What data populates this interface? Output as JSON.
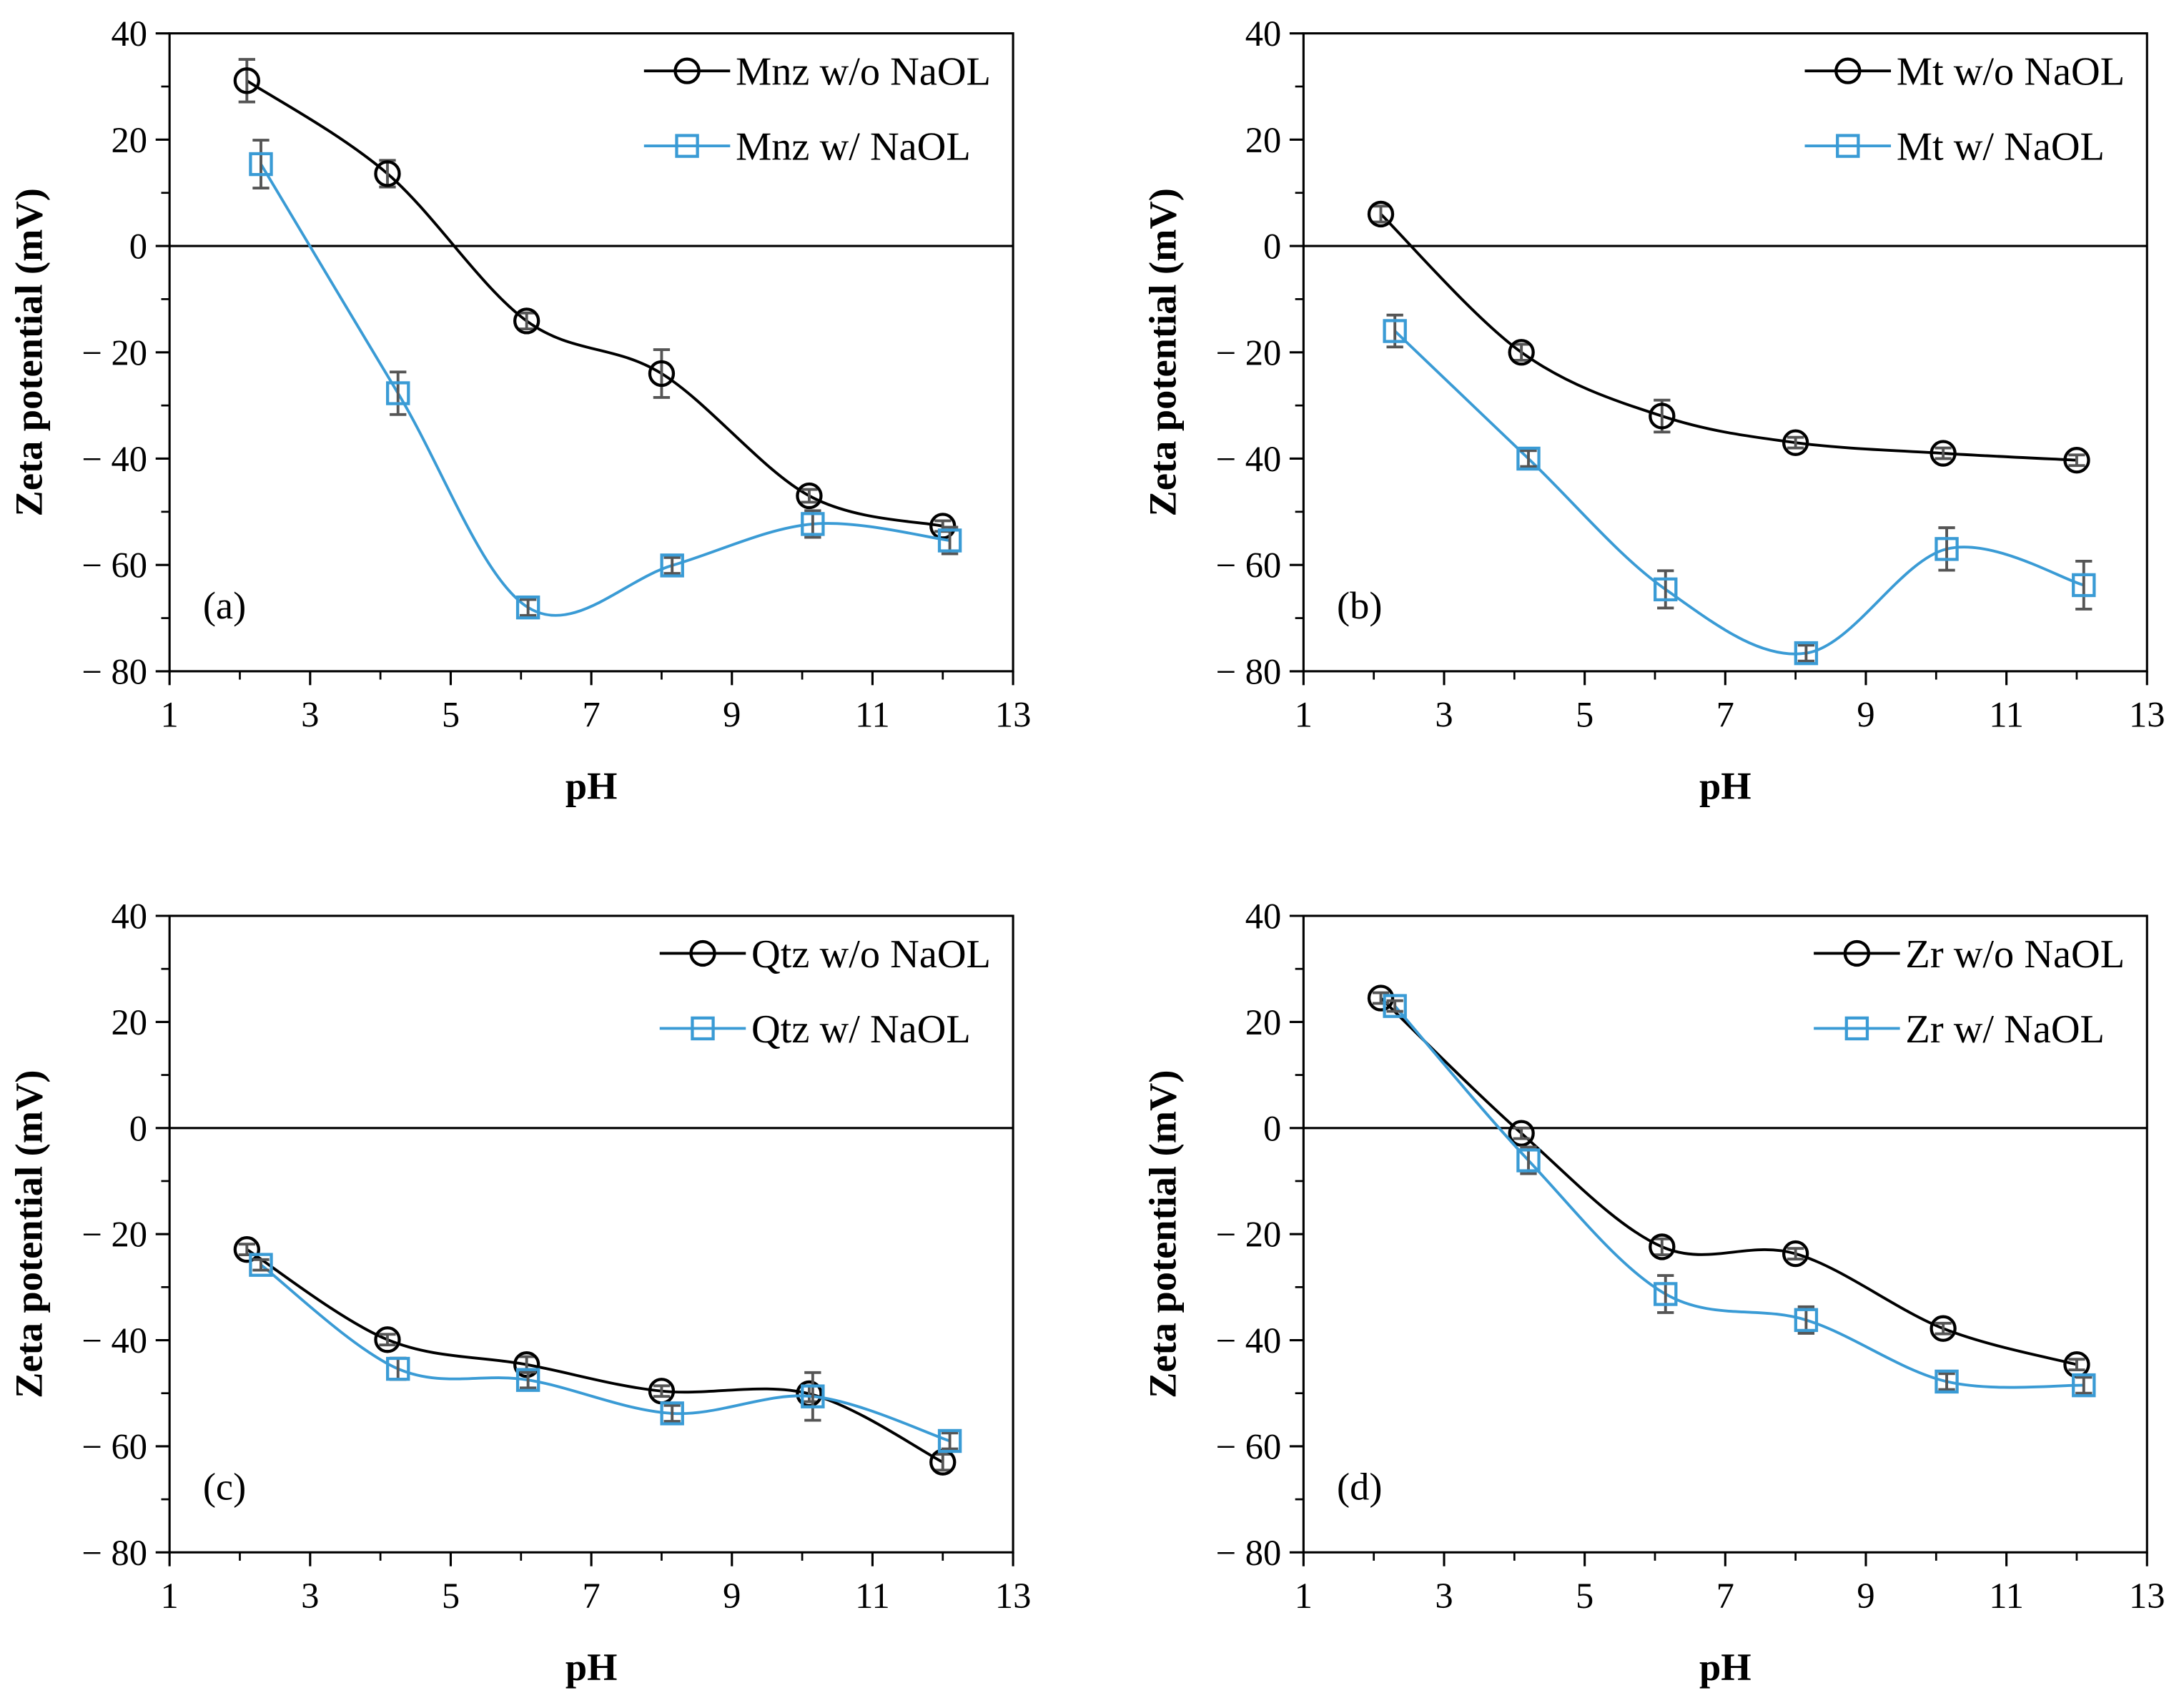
{
  "chart_data": [
    {
      "type": "line",
      "panel_label": "(a)",
      "xlabel": "pH",
      "ylabel": "Zeta potential (mV)",
      "xlim": [
        1,
        13
      ],
      "ylim": [
        -80,
        40
      ],
      "xticks": [
        1,
        3,
        5,
        7,
        9,
        11,
        13
      ],
      "yticks": [
        40,
        20,
        0,
        -20,
        -40,
        -60,
        -80
      ],
      "legend_position": "top-right",
      "series": [
        {
          "name": "Mnz w/o NaOL",
          "marker": "circle",
          "color": "#000000",
          "x": [
            2.1,
            4.1,
            6.08,
            8.0,
            10.1,
            12.0
          ],
          "y": [
            31.1,
            13.6,
            -14.1,
            -24.0,
            -47.0,
            -52.7
          ],
          "err": [
            4,
            2.5,
            1.5,
            4.5,
            1.2,
            1
          ]
        },
        {
          "name": "Mnz w/ NaOL",
          "marker": "square",
          "color": "#3a9bd5",
          "x": [
            2.3,
            4.25,
            6.1,
            8.15,
            10.15,
            12.1
          ],
          "y": [
            15.4,
            -27.7,
            -68.0,
            -60.1,
            -52.3,
            -55.4
          ],
          "err": [
            4.5,
            4,
            1.5,
            1.5,
            2.5,
            2.5
          ]
        }
      ]
    },
    {
      "type": "line",
      "panel_label": "(b)",
      "xlabel": "pH",
      "ylabel": "Zeta potential (mV)",
      "xlim": [
        1,
        13
      ],
      "ylim": [
        -80,
        40
      ],
      "xticks": [
        1,
        3,
        5,
        7,
        9,
        11,
        13
      ],
      "yticks": [
        40,
        20,
        0,
        -20,
        -40,
        -60,
        -80
      ],
      "legend_position": "top-right",
      "series": [
        {
          "name": "Mt w/o NaOL",
          "marker": "circle",
          "color": "#000000",
          "x": [
            2.1,
            4.1,
            6.1,
            8.0,
            10.1,
            12.0
          ],
          "y": [
            6.0,
            -20.0,
            -32.0,
            -37.0,
            -39.0,
            -40.3
          ],
          "err": [
            1.5,
            1.5,
            3,
            1,
            1,
            1
          ]
        },
        {
          "name": "Mt w/ NaOL",
          "marker": "square",
          "color": "#3a9bd5",
          "x": [
            2.3,
            4.2,
            6.15,
            8.15,
            10.15,
            12.1
          ],
          "y": [
            -16.0,
            -40.0,
            -64.6,
            -76.6,
            -57.0,
            -63.8
          ],
          "err": [
            3,
            1.5,
            3.5,
            1.5,
            4,
            4.5
          ]
        }
      ]
    },
    {
      "type": "line",
      "panel_label": "(c)",
      "xlabel": "pH",
      "ylabel": "Zeta potential (mV)",
      "xlim": [
        1,
        13
      ],
      "ylim": [
        -80,
        40
      ],
      "xticks": [
        1,
        3,
        5,
        7,
        9,
        11,
        13
      ],
      "yticks": [
        40,
        20,
        0,
        -20,
        -40,
        -60,
        -80
      ],
      "legend_position": "top-right",
      "series": [
        {
          "name": "Qtz w/o NaOL",
          "marker": "circle",
          "color": "#000000",
          "x": [
            2.1,
            4.1,
            6.08,
            8.0,
            10.1,
            12.0
          ],
          "y": [
            -22.9,
            -39.9,
            -44.6,
            -49.6,
            -50.1,
            -63.0
          ],
          "err": [
            1,
            1,
            1.5,
            1,
            1.5,
            1.5
          ]
        },
        {
          "name": "Qtz w/ NaOL",
          "marker": "square",
          "color": "#3a9bd5",
          "x": [
            2.3,
            4.25,
            6.1,
            8.15,
            10.15,
            12.1
          ],
          "y": [
            -25.8,
            -45.4,
            -47.5,
            -53.8,
            -50.6,
            -59.0
          ],
          "err": [
            1,
            2,
            1.5,
            1.5,
            4.5,
            1.5
          ]
        }
      ]
    },
    {
      "type": "line",
      "panel_label": "(d)",
      "xlabel": "pH",
      "ylabel": "Zeta potential (mV)",
      "xlim": [
        1,
        13
      ],
      "ylim": [
        -80,
        40
      ],
      "xticks": [
        1,
        3,
        5,
        7,
        9,
        11,
        13
      ],
      "yticks": [
        40,
        20,
        0,
        -20,
        -40,
        -60,
        -80
      ],
      "legend_position": "top-right",
      "series": [
        {
          "name": "Zr w/o NaOL",
          "marker": "circle",
          "color": "#000000",
          "x": [
            2.1,
            4.1,
            6.1,
            8.0,
            10.1,
            12.0
          ],
          "y": [
            24.5,
            -1.0,
            -22.4,
            -23.7,
            -37.8,
            -44.6
          ],
          "err": [
            1,
            1,
            1.5,
            1,
            1,
            1
          ]
        },
        {
          "name": "Zr w/ NaOL",
          "marker": "square",
          "color": "#3a9bd5",
          "x": [
            2.3,
            4.2,
            6.15,
            8.15,
            10.15,
            12.1
          ],
          "y": [
            23.0,
            -6.1,
            -31.3,
            -36.2,
            -47.8,
            -48.5
          ],
          "err": [
            1,
            2.5,
            3.5,
            2.5,
            1.5,
            1.5
          ]
        }
      ]
    }
  ]
}
